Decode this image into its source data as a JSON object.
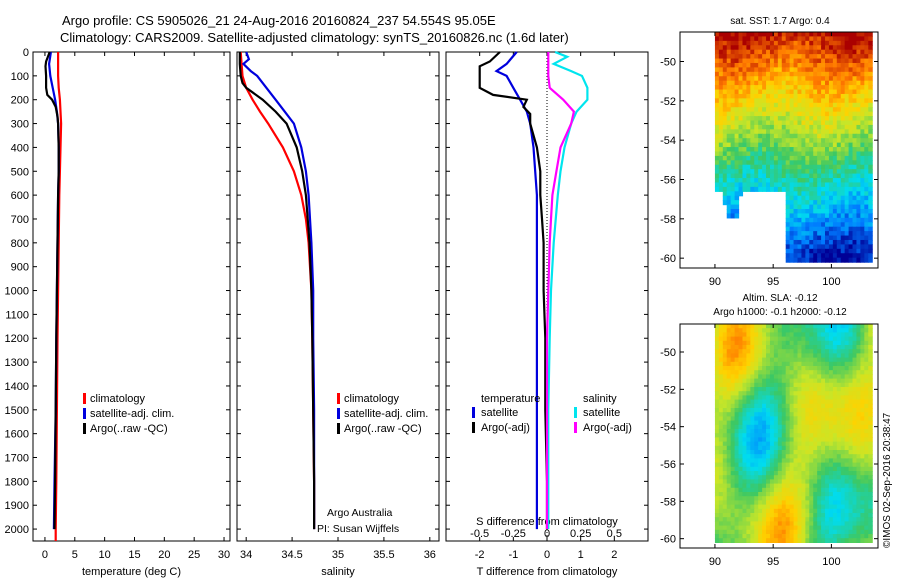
{
  "title": {
    "line1": "Argo profile: CS 5905026_21 24-Aug-2016 20160824_237 54.554S 95.05E",
    "line2": "Climatology: CARS2009. Satellite-adjusted climatology: synTS_20160826.nc (1.6d later)"
  },
  "footer": {
    "argo_group": "Argo Australia",
    "pi": "PI: Susan Wijffels",
    "timestamp": "©IMOS 02-Sep-2016 20:38:47"
  },
  "colors": {
    "climatology": "#ff0000",
    "satellite": "#0000dd",
    "argo": "#000000",
    "satellite_salinity": "#00e5ee",
    "argo_salinity_adj": "#ff00ff"
  },
  "chart_data": [
    {
      "type": "line",
      "panel": "temperature",
      "xlabel": "temperature (deg C)",
      "ylim": [
        2050,
        0
      ],
      "xlim": [
        -2,
        31
      ],
      "xticks": [
        0,
        5,
        10,
        15,
        20,
        25,
        30
      ],
      "yticks": [
        0,
        100,
        200,
        300,
        400,
        500,
        600,
        700,
        800,
        900,
        1000,
        1100,
        1200,
        1300,
        1400,
        1500,
        1600,
        1700,
        1800,
        1900,
        2000
      ],
      "legend": [
        "climatology",
        "satellite-adj. clim.",
        "Argo(..raw -QC)"
      ],
      "series": [
        {
          "name": "climatology",
          "depth": [
            0,
            50,
            100,
            150,
            200,
            250,
            300,
            400,
            500,
            600,
            800,
            1000,
            1200,
            1500,
            1800,
            2000,
            2050
          ],
          "values": [
            2.2,
            2.2,
            2.2,
            2.3,
            2.5,
            2.6,
            2.7,
            2.6,
            2.5,
            2.4,
            2.3,
            2.2,
            2.1,
            2.0,
            1.9,
            1.8,
            1.8
          ]
        },
        {
          "name": "satellite-adj. clim.",
          "depth": [
            0,
            50,
            100,
            150,
            200,
            250,
            300,
            400,
            500,
            600,
            800,
            1000,
            1200,
            1500,
            1800,
            2000
          ],
          "values": [
            1.0,
            0.7,
            0.9,
            1.3,
            1.7,
            2.0,
            2.2,
            2.3,
            2.3,
            2.2,
            2.1,
            2.0,
            1.9,
            1.8,
            1.6,
            1.5
          ]
        },
        {
          "name": "Argo(..raw -QC)",
          "depth": [
            0,
            20,
            40,
            60,
            100,
            150,
            180,
            200,
            230,
            270,
            300,
            400,
            500,
            600,
            800,
            1000,
            1200,
            1500,
            1800,
            2000
          ],
          "values": [
            0.8,
            0.5,
            0.2,
            0.1,
            0.2,
            0.2,
            0.4,
            1.2,
            1.8,
            2.1,
            2.2,
            2.3,
            2.3,
            2.2,
            2.1,
            2.0,
            1.9,
            1.8,
            1.7,
            1.6
          ]
        }
      ]
    },
    {
      "type": "line",
      "panel": "salinity",
      "xlabel": "salinity",
      "ylim": [
        2050,
        0
      ],
      "xlim": [
        33.9,
        36.1
      ],
      "xticks": [
        34,
        34.5,
        35,
        35.5,
        36
      ],
      "xticklabels": [
        "34",
        "34.5",
        "35",
        "35.5",
        "36"
      ],
      "legend": [
        "climatology",
        "satellite-adj. clim.",
        "Argo(..raw -QC)"
      ],
      "series": [
        {
          "name": "climatology",
          "depth": [
            0,
            50,
            100,
            150,
            200,
            250,
            300,
            400,
            500,
            600,
            700,
            800,
            1000,
            1200,
            1500,
            1800,
            2000
          ],
          "values": [
            33.94,
            33.95,
            33.96,
            34.0,
            34.07,
            34.15,
            34.24,
            34.4,
            34.52,
            34.6,
            34.65,
            34.68,
            34.71,
            34.72,
            34.73,
            34.74,
            34.74
          ]
        },
        {
          "name": "satellite-adj. clim.",
          "depth": [
            0,
            30,
            50,
            80,
            100,
            150,
            200,
            250,
            300,
            400,
            500,
            600,
            800,
            1000,
            1200,
            1500,
            1800,
            2000
          ],
          "values": [
            34.0,
            34.03,
            33.97,
            34.05,
            34.12,
            34.22,
            34.32,
            34.42,
            34.52,
            34.6,
            34.65,
            34.68,
            34.71,
            34.73,
            34.73,
            34.74,
            34.74,
            34.74
          ]
        },
        {
          "name": "Argo(..raw -QC)",
          "depth": [
            0,
            50,
            100,
            130,
            150,
            200,
            250,
            300,
            400,
            500,
            600,
            800,
            1000,
            1200,
            1500,
            1800,
            2000
          ],
          "values": [
            33.93,
            33.93,
            33.94,
            33.96,
            34.0,
            34.18,
            34.32,
            34.44,
            34.55,
            34.61,
            34.65,
            34.69,
            34.71,
            34.72,
            34.73,
            34.74,
            34.74
          ]
        }
      ]
    },
    {
      "type": "line",
      "panel": "difference",
      "xlabel": "T difference from climatology",
      "xlabel_top": "S difference from climatology",
      "ylim": [
        2050,
        0
      ],
      "xlim": [
        -3,
        3
      ],
      "xticks": [
        -2,
        -1,
        0,
        1,
        2
      ],
      "xticks_top": [
        -0.5,
        -0.25,
        0,
        0.25,
        0.5
      ],
      "legend_titles": [
        "temperature",
        "salinity"
      ],
      "legend": [
        "satellite",
        "Argo(-adj)",
        "satellite",
        "Argo(-adj)"
      ],
      "series": [
        {
          "name": "satellite",
          "group": "temperature",
          "depth": [
            0,
            50,
            80,
            100,
            150,
            200,
            250,
            300,
            400,
            500,
            600,
            800,
            1000,
            1200,
            1500,
            1800,
            2000
          ],
          "values": [
            -0.9,
            -1.2,
            -1.5,
            -1.2,
            -1.0,
            -0.8,
            -0.6,
            -0.5,
            -0.4,
            -0.35,
            -0.3,
            -0.3,
            -0.3,
            -0.3,
            -0.3,
            -0.3,
            -0.3
          ]
        },
        {
          "name": "Argo(-adj)",
          "group": "temperature",
          "depth": [
            0,
            40,
            60,
            100,
            150,
            180,
            200,
            230,
            260,
            300,
            400,
            500,
            600,
            700,
            800,
            1000,
            1200,
            1500,
            1800,
            2000
          ],
          "values": [
            -1.4,
            -1.7,
            -2.0,
            -2.0,
            -2.0,
            -1.6,
            -0.6,
            -0.7,
            -0.5,
            -0.5,
            -0.3,
            -0.2,
            -0.2,
            -0.15,
            -0.1,
            -0.1,
            -0.05,
            -0.05,
            0,
            0
          ]
        },
        {
          "name": "satellite",
          "group": "salinity",
          "depth": [
            0,
            20,
            50,
            80,
            100,
            150,
            200,
            250,
            300,
            400,
            500,
            600,
            800,
            1000,
            1200,
            1500,
            1800,
            2000
          ],
          "values": [
            0.06,
            0.15,
            0.05,
            0.18,
            0.26,
            0.3,
            0.3,
            0.22,
            0.18,
            0.13,
            0.1,
            0.08,
            0.05,
            0.03,
            0.02,
            0.01,
            0.01,
            0.01
          ]
        },
        {
          "name": "Argo(-adj)",
          "group": "salinity",
          "depth": [
            0,
            50,
            100,
            150,
            200,
            250,
            300,
            400,
            500,
            600,
            700,
            800,
            1000,
            1200,
            1500,
            1800,
            2000
          ],
          "values": [
            0.01,
            0.01,
            0.01,
            0.02,
            0.12,
            0.2,
            0.18,
            0.1,
            0.07,
            0.04,
            0.03,
            0.02,
            0.01,
            0.0,
            0.0,
            0.0,
            0.0
          ]
        }
      ]
    },
    {
      "type": "heatmap",
      "panel": "sst_map",
      "title": "sat. SST: 1.7 Argo: 0.4",
      "xlim": [
        87,
        104
      ],
      "ylim": [
        -60.5,
        -48.5
      ],
      "xticks": [
        90,
        95,
        100
      ],
      "yticks": [
        -50,
        -52,
        -54,
        -56,
        -58,
        -60
      ]
    },
    {
      "type": "heatmap",
      "panel": "sla_map",
      "title_line1": "Altim. SLA: -0.12",
      "title_line2": "Argo h1000: -0.1 h2000: -0.12",
      "xlim": [
        87,
        104
      ],
      "ylim": [
        -60.5,
        -48.5
      ],
      "xticks": [
        90,
        95,
        100
      ],
      "yticks": [
        -50,
        -52,
        -54,
        -56,
        -58,
        -60
      ]
    }
  ]
}
